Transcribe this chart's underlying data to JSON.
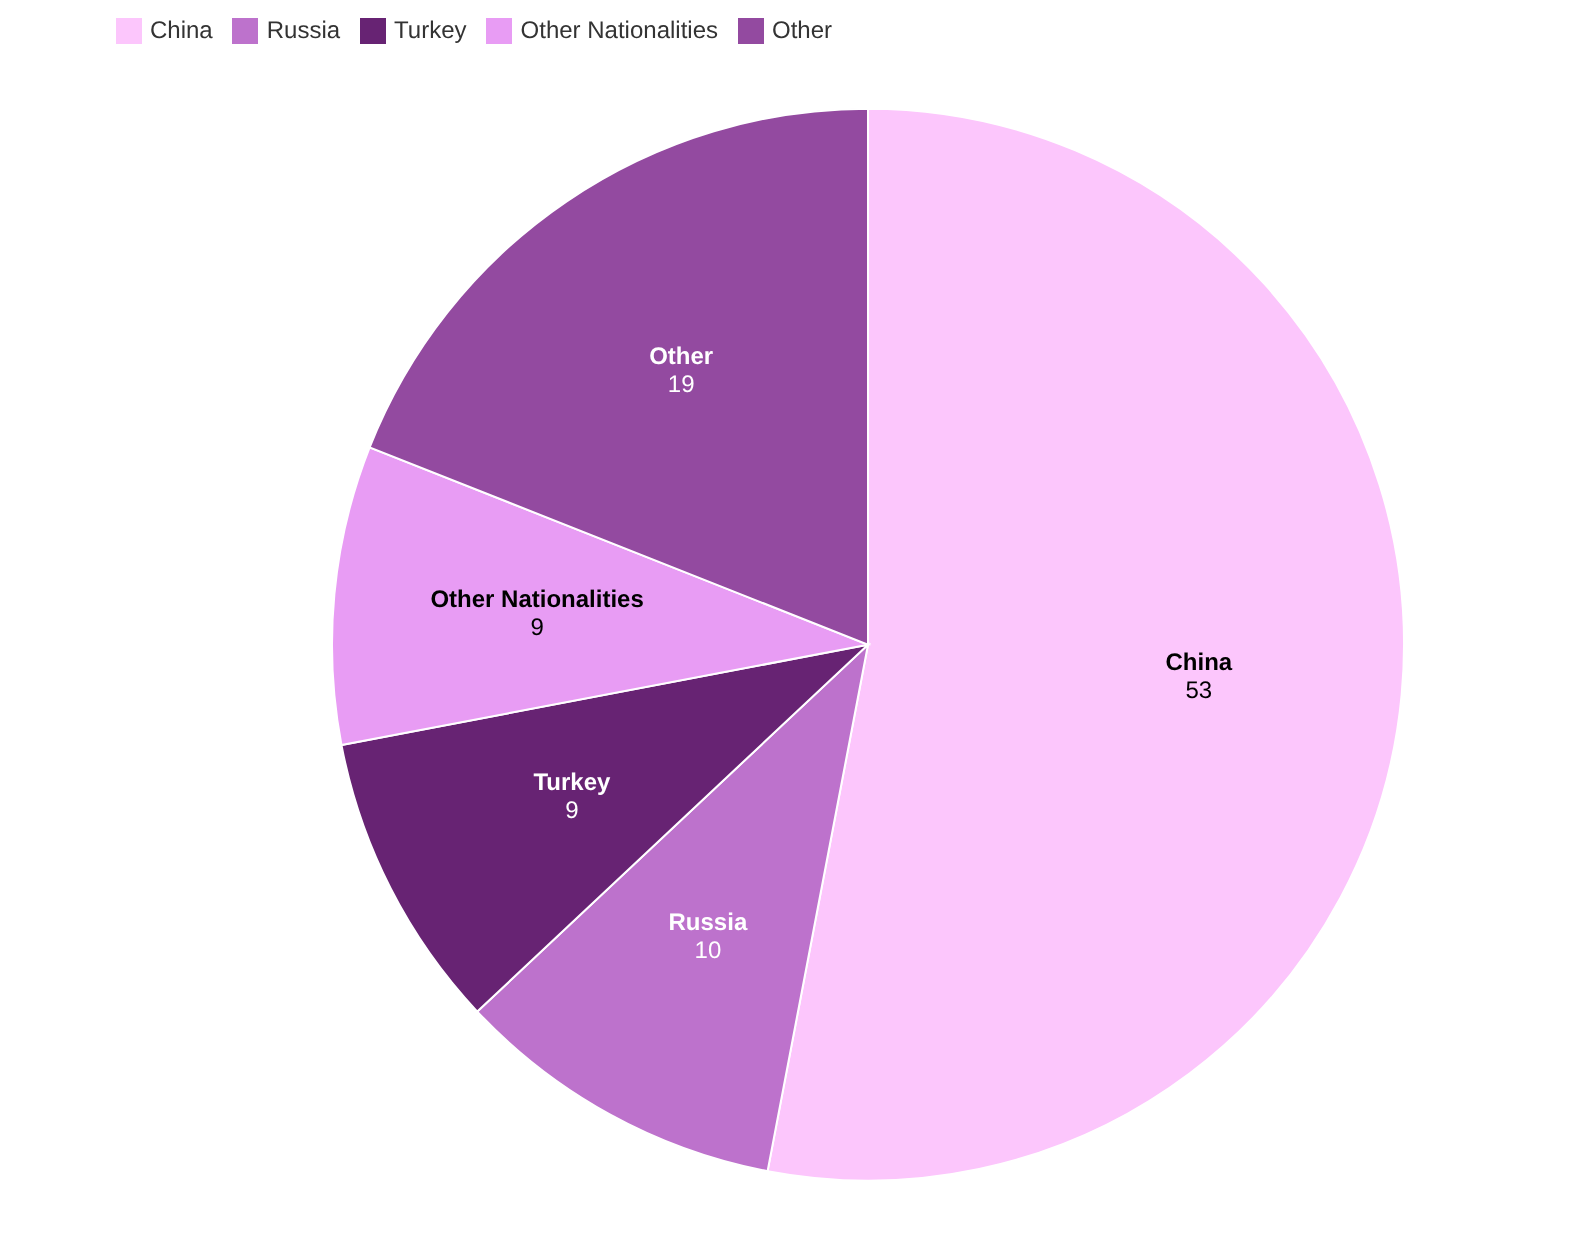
{
  "chart_data": {
    "type": "pie",
    "categories": [
      "China",
      "Russia",
      "Turkey",
      "Other Nationalities",
      "Other"
    ],
    "values": [
      53,
      10,
      9,
      9,
      19
    ],
    "colors": [
      "#fcc6fc",
      "#bd72cc",
      "#672373",
      "#e89cf4",
      "#934aa0"
    ],
    "data_labels": true,
    "legend": "top left"
  }
}
